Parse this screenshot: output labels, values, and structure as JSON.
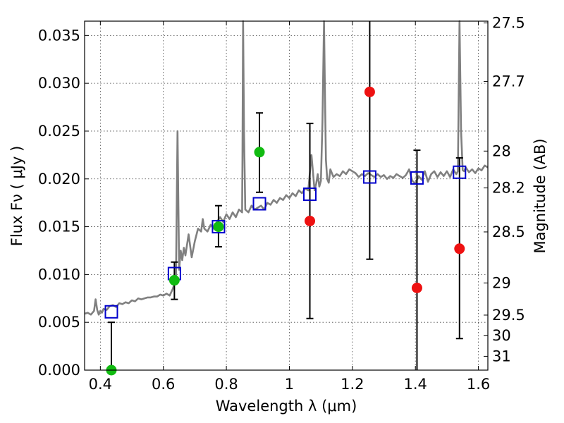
{
  "chart_data": {
    "type": "scatter",
    "title": "",
    "xlabel": "Wavelength  λ (μm)",
    "ylabel": "Flux  Fν  ( μJy )",
    "y2label": "Magnitude (AB)",
    "xlim": [
      0.35,
      1.63
    ],
    "ylim": [
      0.0,
      0.0365
    ],
    "grid": true,
    "x_ticks": [
      {
        "value": 0.4,
        "label": "0.4"
      },
      {
        "value": 0.6,
        "label": "0.6"
      },
      {
        "value": 0.8,
        "label": "0.8"
      },
      {
        "value": 1.0,
        "label": "1"
      },
      {
        "value": 1.2,
        "label": "1.2"
      },
      {
        "value": 1.4,
        "label": "1.4"
      },
      {
        "value": 1.6,
        "label": "1.6"
      }
    ],
    "y_ticks": [
      {
        "value": 0.0,
        "label": "0.000"
      },
      {
        "value": 0.005,
        "label": "0.005"
      },
      {
        "value": 0.01,
        "label": "0.010"
      },
      {
        "value": 0.015,
        "label": "0.015"
      },
      {
        "value": 0.02,
        "label": "0.020"
      },
      {
        "value": 0.025,
        "label": "0.025"
      },
      {
        "value": 0.03,
        "label": "0.030"
      },
      {
        "value": 0.035,
        "label": "0.035"
      }
    ],
    "y2_ticks": [
      {
        "mag": 27.5,
        "label": "27.5"
      },
      {
        "mag": 27.7,
        "label": "27.7"
      },
      {
        "mag": 28.0,
        "label": "28"
      },
      {
        "mag": 28.2,
        "label": "28.2"
      },
      {
        "mag": 28.5,
        "label": "28.5"
      },
      {
        "mag": 29.0,
        "label": "29"
      },
      {
        "mag": 29.5,
        "label": "29.5"
      },
      {
        "mag": 30.0,
        "label": "30"
      },
      {
        "mag": 31.0,
        "label": "31"
      }
    ],
    "colors": {
      "sed": "#808080",
      "model_box": "#0000cc",
      "green": "#11bb11",
      "red": "#ee1111",
      "errorbar": "#000000",
      "grid": "#444444"
    },
    "sed_model": {
      "x": [
        0.35,
        0.36,
        0.37,
        0.38,
        0.385,
        0.39,
        0.395,
        0.4,
        0.405,
        0.41,
        0.42,
        0.43,
        0.44,
        0.45,
        0.46,
        0.47,
        0.48,
        0.49,
        0.5,
        0.51,
        0.52,
        0.53,
        0.54,
        0.55,
        0.56,
        0.57,
        0.58,
        0.59,
        0.6,
        0.61,
        0.62,
        0.63,
        0.64,
        0.645,
        0.65,
        0.655,
        0.66,
        0.665,
        0.67,
        0.68,
        0.69,
        0.7,
        0.71,
        0.72,
        0.725,
        0.73,
        0.74,
        0.75,
        0.76,
        0.77,
        0.78,
        0.79,
        0.8,
        0.81,
        0.82,
        0.83,
        0.84,
        0.85,
        0.851,
        0.853,
        0.856,
        0.86,
        0.87,
        0.88,
        0.89,
        0.9,
        0.91,
        0.92,
        0.93,
        0.94,
        0.95,
        0.96,
        0.97,
        0.98,
        0.99,
        1.0,
        1.01,
        1.02,
        1.03,
        1.04,
        1.05,
        1.06,
        1.07,
        1.08,
        1.085,
        1.09,
        1.095,
        1.1,
        1.105,
        1.11,
        1.113,
        1.116,
        1.12,
        1.125,
        1.13,
        1.14,
        1.15,
        1.16,
        1.17,
        1.18,
        1.19,
        1.2,
        1.21,
        1.22,
        1.23,
        1.24,
        1.25,
        1.26,
        1.27,
        1.28,
        1.29,
        1.3,
        1.31,
        1.32,
        1.33,
        1.34,
        1.35,
        1.36,
        1.37,
        1.38,
        1.39,
        1.4,
        1.41,
        1.42,
        1.43,
        1.44,
        1.45,
        1.46,
        1.47,
        1.48,
        1.49,
        1.5,
        1.51,
        1.52,
        1.53,
        1.535,
        1.54,
        1.545,
        1.55,
        1.555,
        1.56,
        1.57,
        1.58,
        1.59,
        1.6,
        1.61,
        1.62,
        1.63
      ],
      "y": [
        0.0059,
        0.006,
        0.0058,
        0.0062,
        0.0074,
        0.0063,
        0.0058,
        0.0062,
        0.006,
        0.0064,
        0.0063,
        0.0067,
        0.0068,
        0.0066,
        0.007,
        0.0069,
        0.0071,
        0.007,
        0.0073,
        0.0072,
        0.0075,
        0.0074,
        0.0075,
        0.0076,
        0.0076,
        0.0077,
        0.0077,
        0.0079,
        0.0078,
        0.008,
        0.0078,
        0.0085,
        0.0095,
        0.025,
        0.0105,
        0.0125,
        0.0115,
        0.0128,
        0.012,
        0.0142,
        0.0118,
        0.0135,
        0.0148,
        0.0145,
        0.0158,
        0.0148,
        0.0145,
        0.0152,
        0.0148,
        0.0155,
        0.016,
        0.0155,
        0.0163,
        0.0158,
        0.0165,
        0.016,
        0.0168,
        0.0165,
        0.022,
        0.0365,
        0.025,
        0.0168,
        0.0165,
        0.0172,
        0.0168,
        0.017,
        0.0172,
        0.0168,
        0.0175,
        0.0173,
        0.0178,
        0.0175,
        0.018,
        0.0178,
        0.0183,
        0.018,
        0.0185,
        0.0182,
        0.0188,
        0.0185,
        0.019,
        0.0188,
        0.0225,
        0.0188,
        0.0195,
        0.0205,
        0.0192,
        0.0198,
        0.026,
        0.0365,
        0.0285,
        0.022,
        0.02,
        0.0196,
        0.021,
        0.0202,
        0.0205,
        0.0203,
        0.0208,
        0.0205,
        0.021,
        0.0208,
        0.0206,
        0.0202,
        0.0205,
        0.0203,
        0.0206,
        0.0204,
        0.0202,
        0.0205,
        0.0202,
        0.0204,
        0.02,
        0.0203,
        0.0201,
        0.0205,
        0.0203,
        0.0201,
        0.0204,
        0.021,
        0.0198,
        0.0195,
        0.0203,
        0.0199,
        0.0208,
        0.0197,
        0.0205,
        0.0208,
        0.0202,
        0.0207,
        0.0203,
        0.0208,
        0.0202,
        0.021,
        0.0205,
        0.0208,
        0.0365,
        0.025,
        0.0209,
        0.0208,
        0.0212,
        0.0207,
        0.021,
        0.0206,
        0.0211,
        0.0209,
        0.0214,
        0.0212
      ]
    },
    "model_photometry": {
      "x": [
        0.435,
        0.635,
        0.775,
        0.905,
        1.065,
        1.255,
        1.405,
        1.54
      ],
      "y": [
        0.0061,
        0.0101,
        0.015,
        0.0174,
        0.0184,
        0.0202,
        0.0201,
        0.0207
      ]
    },
    "observed_green": {
      "x": [
        0.435,
        0.635,
        0.775,
        0.905
      ],
      "y": [
        0.0,
        0.0094,
        0.015,
        0.0228
      ],
      "yerr_low": [
        0.0,
        0.002,
        0.0021,
        0.0042
      ],
      "yerr_high": [
        0.005,
        0.0019,
        0.0022,
        0.0041
      ]
    },
    "observed_red": {
      "x": [
        1.065,
        1.255,
        1.405,
        1.54
      ],
      "y": [
        0.0156,
        0.0291,
        0.0086,
        0.0127
      ],
      "yerr_low": [
        0.0102,
        0.0175,
        0.0086,
        0.0094
      ],
      "yerr_high": [
        0.0102,
        0.0175,
        0.0144,
        0.0095
      ]
    }
  }
}
